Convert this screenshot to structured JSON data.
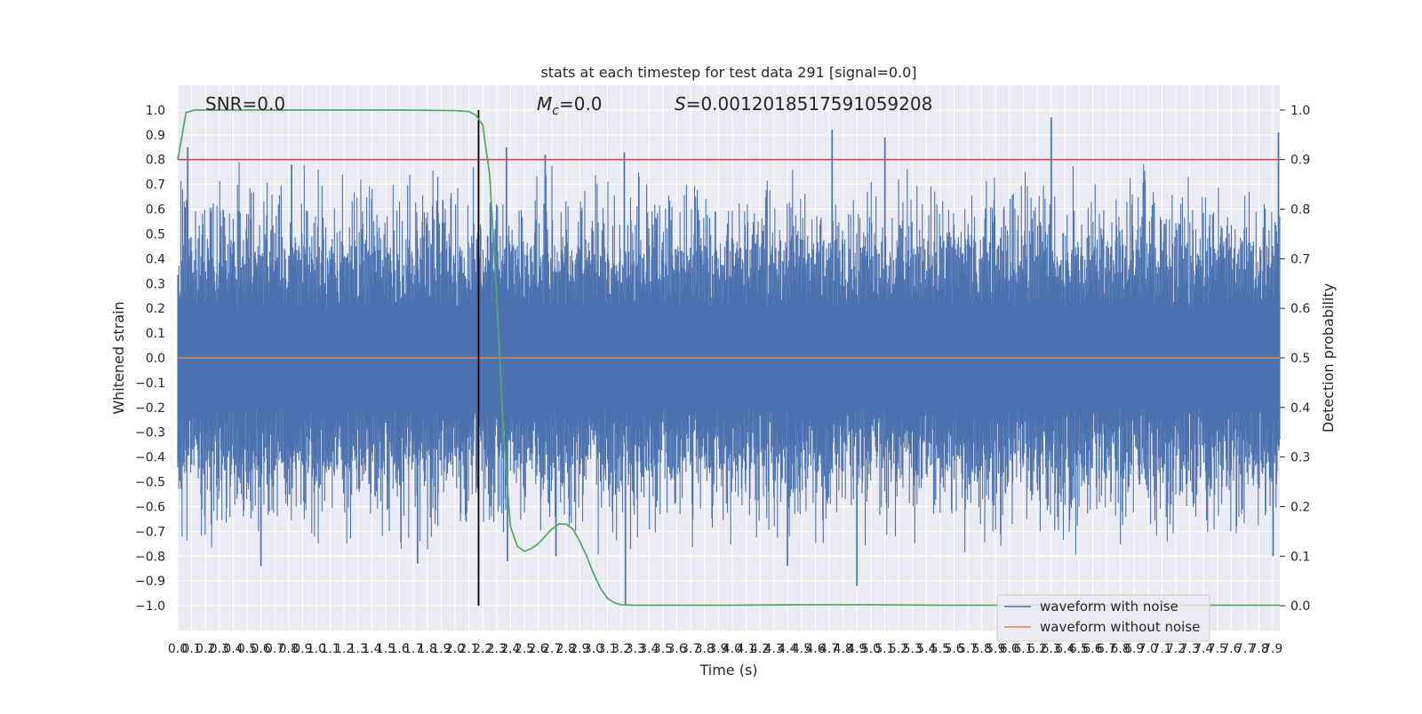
{
  "chart_data": {
    "type": "line",
    "title": "stats at each timestep for test data 291 [signal=0.0]",
    "xlabel": "Time (s)",
    "ylabel": "Whitened strain",
    "ylabel_right": "Detection probability",
    "xlim": [
      0.0,
      7.95
    ],
    "ylim": [
      -1.1,
      1.1
    ],
    "ylim_right": [
      -0.05,
      1.05
    ],
    "x_ticks": [
      0.0,
      0.1,
      0.2,
      0.3,
      0.4,
      0.5,
      0.6,
      0.7,
      0.8,
      0.9,
      1.0,
      1.1,
      1.2,
      1.3,
      1.4,
      1.5,
      1.6,
      1.7,
      1.8,
      1.9,
      2.0,
      2.1,
      2.2,
      2.3,
      2.4,
      2.5,
      2.6,
      2.7,
      2.8,
      2.9,
      3.0,
      3.1,
      3.2,
      3.3,
      3.4,
      3.5,
      3.6,
      3.7,
      3.8,
      3.9,
      4.0,
      4.1,
      4.2,
      4.3,
      4.4,
      4.5,
      4.6,
      4.7,
      4.8,
      4.9,
      5.0,
      5.1,
      5.2,
      5.3,
      5.4,
      5.5,
      5.6,
      5.7,
      5.8,
      5.9,
      6.0,
      6.1,
      6.2,
      6.3,
      6.4,
      6.5,
      6.6,
      6.7,
      6.8,
      6.9,
      7.0,
      7.1,
      7.2,
      7.3,
      7.4,
      7.5,
      7.6,
      7.7,
      7.8,
      7.9
    ],
    "y_ticks": [
      -1.0,
      -0.9,
      -0.8,
      -0.7,
      -0.6,
      -0.5,
      -0.4,
      -0.3,
      -0.2,
      -0.1,
      0.0,
      0.1,
      0.2,
      0.3,
      0.4,
      0.5,
      0.6,
      0.7,
      0.8,
      0.9,
      1.0
    ],
    "y_ticks_right": [
      0.0,
      0.1,
      0.2,
      0.3,
      0.4,
      0.5,
      0.6,
      0.7,
      0.8,
      0.9,
      1.0
    ],
    "noise_series": {
      "name": "waveform with noise",
      "color": "#4c72b0",
      "samples": 2048,
      "envelope_note": "",
      "peaks": [
        {
          "x": 0.07,
          "y": 0.85
        },
        {
          "x": 0.82,
          "y": 0.78
        },
        {
          "x": 2.17,
          "y": 0.81
        },
        {
          "x": 2.37,
          "y": 0.85
        },
        {
          "x": 2.65,
          "y": 0.82
        },
        {
          "x": 3.22,
          "y": 0.83
        },
        {
          "x": 4.72,
          "y": 0.92
        },
        {
          "x": 5.1,
          "y": 0.89
        },
        {
          "x": 6.3,
          "y": 0.97
        },
        {
          "x": 7.94,
          "y": 0.91
        },
        {
          "x": 0.6,
          "y": -0.84
        },
        {
          "x": 1.73,
          "y": -0.83
        },
        {
          "x": 2.38,
          "y": -0.82
        },
        {
          "x": 2.73,
          "y": -0.8
        },
        {
          "x": 3.23,
          "y": -1.0
        },
        {
          "x": 4.4,
          "y": -0.84
        },
        {
          "x": 4.9,
          "y": -0.92
        },
        {
          "x": 7.9,
          "y": -0.8
        }
      ]
    },
    "clean_series": {
      "name": "waveform without noise",
      "color": "#dd8452",
      "y": 0.0
    },
    "probability_series": {
      "name": "",
      "color": "#55a868",
      "x": [
        0.0,
        0.06,
        0.12,
        0.2,
        0.4,
        0.8,
        1.2,
        1.6,
        2.0,
        2.1,
        2.15,
        2.2,
        2.25,
        2.3,
        2.35,
        2.4,
        2.45,
        2.5,
        2.55,
        2.6,
        2.65,
        2.7,
        2.75,
        2.8,
        2.85,
        2.9,
        2.95,
        3.0,
        3.05,
        3.1,
        3.15,
        3.2,
        3.3,
        3.5,
        4.0,
        4.5,
        4.8,
        5.0,
        5.5,
        6.0,
        6.5,
        7.0,
        7.5,
        7.95
      ],
      "y": [
        0.9,
        0.995,
        1.0,
        1.0,
        1.0,
        1.0,
        1.0,
        1.0,
        0.999,
        0.997,
        0.99,
        0.97,
        0.87,
        0.63,
        0.35,
        0.16,
        0.12,
        0.11,
        0.115,
        0.125,
        0.14,
        0.155,
        0.165,
        0.165,
        0.155,
        0.13,
        0.1,
        0.065,
        0.035,
        0.015,
        0.006,
        0.002,
        0.001,
        0.001,
        0.001,
        0.002,
        0.002,
        0.002,
        0.001,
        0.001,
        0.001,
        0.001,
        0.001,
        0.001
      ]
    },
    "threshold": {
      "y_right": 0.9,
      "color": "#c44e52"
    },
    "detection_line": {
      "x": 2.17,
      "color": "#000000"
    },
    "annotations": {
      "snr": "SNR=0.0",
      "mc_symbol": "M",
      "mc_sub": "c",
      "mc_value": "=0.0",
      "s_symbol": "S",
      "s_value": "=0.0012018517591059208"
    },
    "legend": {
      "placement": "lower-right",
      "entries": [
        {
          "label": "waveform with noise",
          "color": "#4c72b0"
        },
        {
          "label": "waveform without noise",
          "color": "#dd8452"
        }
      ]
    },
    "grid": true,
    "background": "#eaeaf2"
  }
}
